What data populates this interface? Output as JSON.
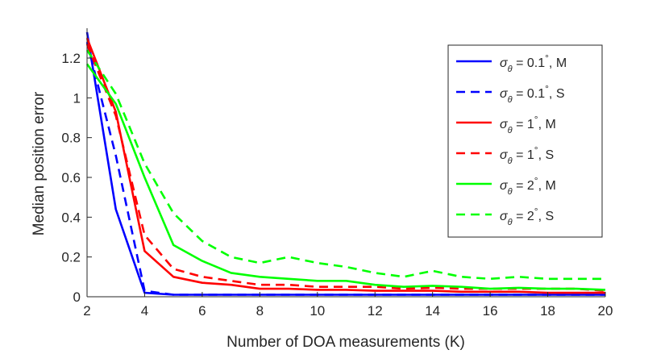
{
  "chart_data": {
    "type": "line",
    "xlabel": "Number of DOA measurements (K)",
    "ylabel": "Median position error",
    "xlim": [
      2,
      20
    ],
    "ylim": [
      0,
      1.35
    ],
    "xticks": [
      2,
      4,
      6,
      8,
      10,
      12,
      14,
      16,
      18,
      20
    ],
    "yticks": [
      0,
      0.2,
      0.4,
      0.6,
      0.8,
      1,
      1.2
    ],
    "xtick_labels": [
      "2",
      "4",
      "6",
      "8",
      "10",
      "12",
      "14",
      "16",
      "18",
      "20"
    ],
    "ytick_labels": [
      "0",
      "0.2",
      "0.4",
      "0.6",
      "0.8",
      "1",
      "1.2"
    ],
    "grid": false,
    "legend_position": "top-right",
    "x": [
      2,
      3,
      4,
      5,
      6,
      7,
      8,
      9,
      10,
      11,
      12,
      13,
      14,
      15,
      16,
      17,
      18,
      19,
      20
    ],
    "series": [
      {
        "legend": {
          "symbol": "σ",
          "subscript": "θ",
          "value": " = 0.1",
          "suffix": ", M"
        },
        "color": "#0000ff",
        "dash": "solid",
        "values": [
          1.33,
          0.44,
          0.02,
          0.01,
          0.01,
          0.01,
          0.01,
          0.01,
          0.01,
          0.01,
          0.01,
          0.01,
          0.01,
          0.01,
          0.01,
          0.01,
          0.01,
          0.01,
          0.01
        ]
      },
      {
        "legend": {
          "symbol": "σ",
          "subscript": "θ",
          "value": " = 0.1",
          "suffix": ", S"
        },
        "color": "#0000ff",
        "dash": "dashed",
        "values": [
          1.28,
          0.71,
          0.03,
          0.01,
          0.01,
          0.01,
          0.01,
          0.01,
          0.01,
          0.01,
          0.01,
          0.01,
          0.01,
          0.01,
          0.01,
          0.01,
          0.01,
          0.01,
          0.01
        ]
      },
      {
        "legend": {
          "symbol": "σ",
          "subscript": "θ",
          "value": " = 1",
          "suffix": ", M"
        },
        "color": "#ff0000",
        "dash": "solid",
        "values": [
          1.3,
          0.93,
          0.23,
          0.1,
          0.07,
          0.06,
          0.04,
          0.04,
          0.035,
          0.035,
          0.03,
          0.03,
          0.03,
          0.025,
          0.025,
          0.025,
          0.02,
          0.02,
          0.02
        ]
      },
      {
        "legend": {
          "symbol": "σ",
          "subscript": "θ",
          "value": " = 1",
          "suffix": ", S"
        },
        "color": "#ff0000",
        "dash": "dashed",
        "values": [
          1.27,
          0.91,
          0.31,
          0.14,
          0.1,
          0.08,
          0.06,
          0.06,
          0.05,
          0.05,
          0.05,
          0.04,
          0.045,
          0.04,
          0.04,
          0.04,
          0.04,
          0.04,
          0.03
        ]
      },
      {
        "legend": {
          "symbol": "σ",
          "subscript": "θ",
          "value": " = 2",
          "suffix": ", M"
        },
        "color": "#00ff00",
        "dash": "solid",
        "values": [
          1.17,
          0.97,
          0.6,
          0.26,
          0.18,
          0.12,
          0.1,
          0.09,
          0.08,
          0.08,
          0.06,
          0.05,
          0.055,
          0.05,
          0.04,
          0.045,
          0.04,
          0.04,
          0.035
        ]
      },
      {
        "legend": {
          "symbol": "σ",
          "subscript": "θ",
          "value": " = 2",
          "suffix": ", S"
        },
        "color": "#00ff00",
        "dash": "dashed",
        "values": [
          1.24,
          1.02,
          0.67,
          0.42,
          0.28,
          0.2,
          0.17,
          0.2,
          0.17,
          0.15,
          0.12,
          0.1,
          0.13,
          0.1,
          0.09,
          0.1,
          0.09,
          0.09,
          0.09
        ]
      }
    ]
  }
}
